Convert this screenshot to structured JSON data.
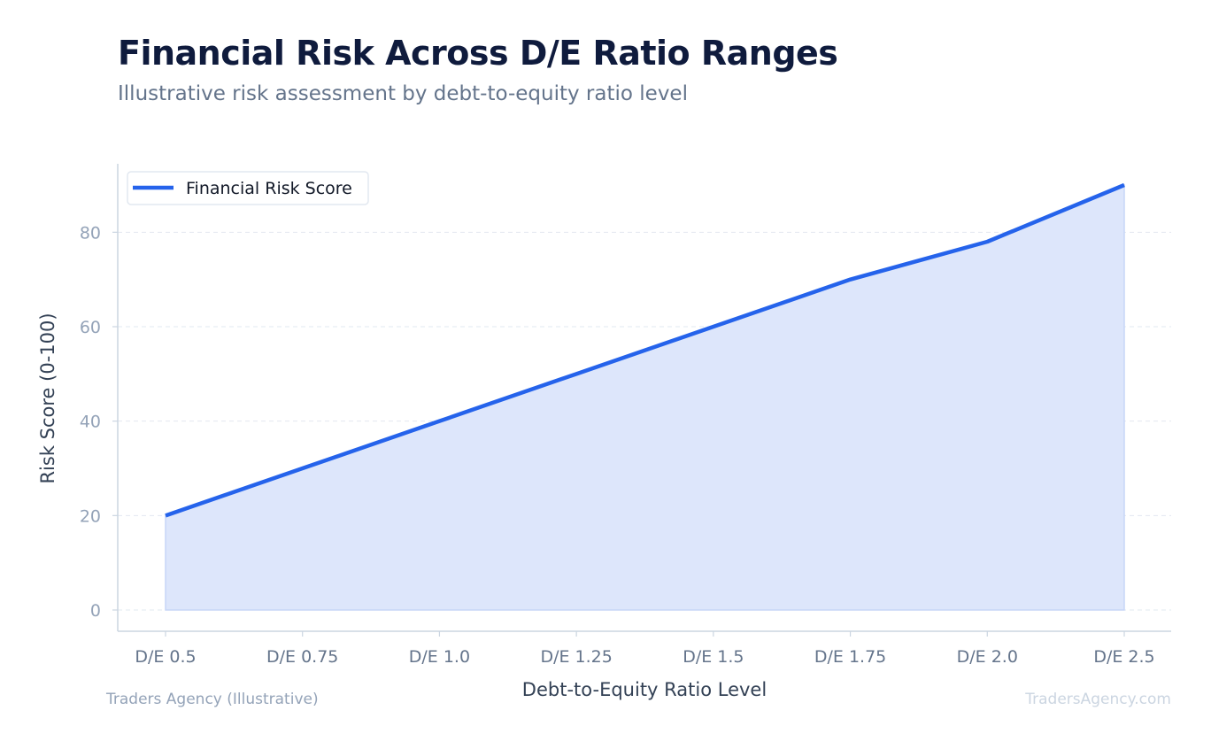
{
  "header": {
    "title": "Financial Risk Across D/E Ratio Ranges",
    "subtitle": "Illustrative risk assessment by debt-to-equity ratio level"
  },
  "footer": {
    "left": "Traders Agency (Illustrative)",
    "right": "TradersAgency.com"
  },
  "colors": {
    "line": "#2563eb",
    "fill": "#dde6fb",
    "grid": "#e2e8f0",
    "axis": "#cbd5e1",
    "tick_text": "#94a3b8",
    "xtick_text": "#64748b",
    "axis_label": "#334155"
  },
  "chart_data": {
    "type": "area",
    "title": "",
    "xlabel": "Debt-to-Equity Ratio Level",
    "ylabel": "Risk Score (0-100)",
    "categories": [
      "D/E 0.5",
      "D/E 0.75",
      "D/E 1.0",
      "D/E 1.25",
      "D/E 1.5",
      "D/E 1.75",
      "D/E 2.0",
      "D/E 2.5"
    ],
    "series": [
      {
        "name": "Financial Risk Score",
        "values": [
          20,
          30,
          40,
          50,
          60,
          70,
          78,
          90
        ]
      }
    ],
    "yticks": [
      0,
      20,
      40,
      60,
      80
    ],
    "ylim": [
      -4.5,
      94.5
    ],
    "grid": true,
    "legend_position": "top-left"
  }
}
